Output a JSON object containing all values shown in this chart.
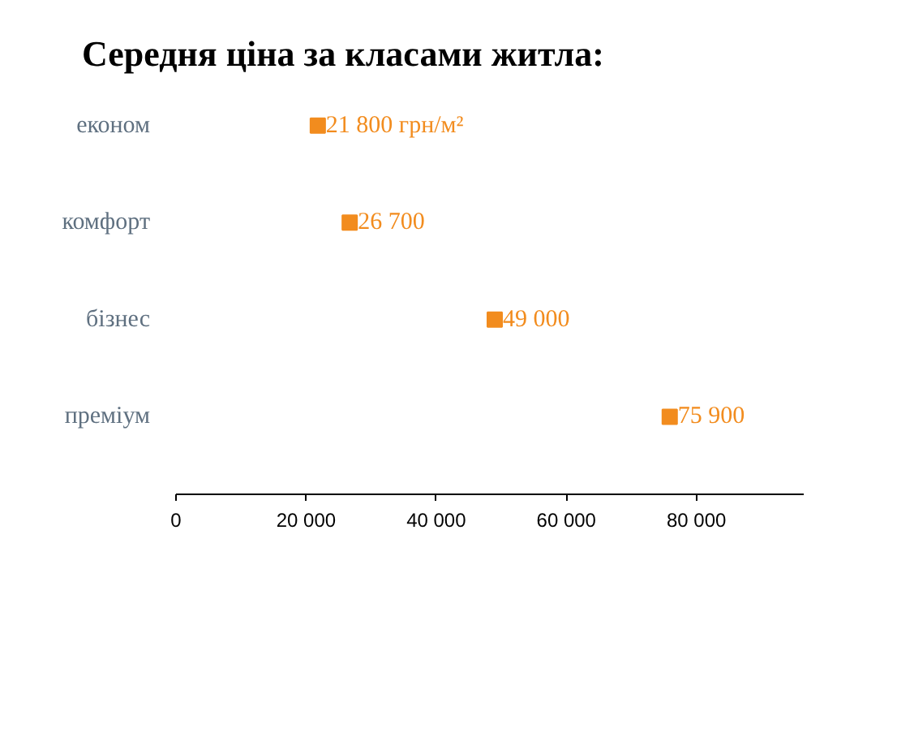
{
  "chart_data": {
    "type": "scatter",
    "orientation": "horizontal",
    "title": "Середня ціна за класами житла:",
    "categories": [
      "економ",
      "комфорт",
      "бізнес",
      "преміум"
    ],
    "values": [
      21800,
      26700,
      49000,
      75900
    ],
    "value_labels": [
      "21 800 грн/м²",
      "26 700",
      "49 000",
      "75 900"
    ],
    "color": "#f28c1e",
    "marker": "square",
    "xlim": [
      0,
      96500
    ],
    "xticks": [
      0,
      {
        "value": 20000,
        "label": "20 000"
      },
      {
        "value": 40000,
        "label": "40 000"
      },
      {
        "value": 60000,
        "label": "60 000"
      },
      {
        "value": 80000,
        "label": "80 000"
      }
    ],
    "grid": false
  }
}
